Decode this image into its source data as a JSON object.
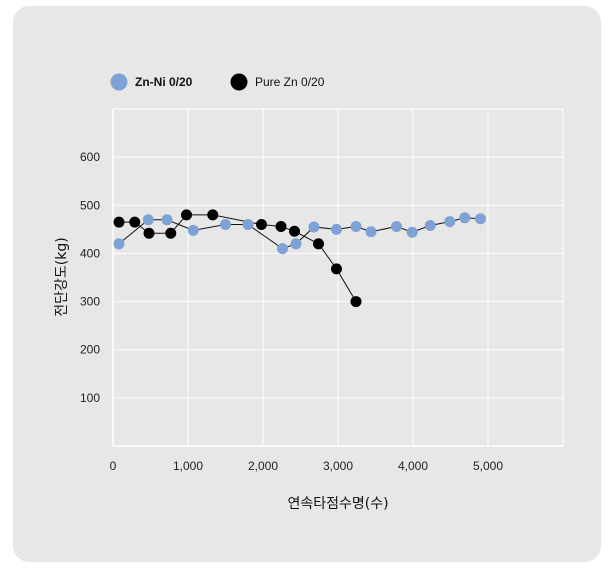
{
  "chart_data": {
    "type": "scatter",
    "title": "",
    "xlabel": "연속타점수명(수)",
    "ylabel": "전단강도(kg)",
    "xlim": [
      0,
      6000
    ],
    "ylim": [
      0,
      700
    ],
    "x_ticks": [
      0,
      1000,
      2000,
      3000,
      4000,
      5000
    ],
    "x_tick_labels": [
      "0",
      "1,000",
      "2,000",
      "3,000",
      "4,000",
      "5,000"
    ],
    "y_ticks": [
      100,
      200,
      300,
      400,
      500,
      600
    ],
    "y_tick_labels": [
      "100",
      "200",
      "300",
      "400",
      "500",
      "600"
    ],
    "grid": true,
    "legend_position": "top-left",
    "series": [
      {
        "name": "Zn-Ni 0/20",
        "color": "#7ea1d6",
        "x": [
          80,
          470,
          720,
          1070,
          1500,
          1800,
          2260,
          2440,
          2680,
          2980,
          3240,
          3440,
          3780,
          3990,
          4230,
          4490,
          4690,
          4900
        ],
        "y": [
          420,
          470,
          470,
          448,
          460,
          460,
          410,
          420,
          455,
          450,
          456,
          445,
          456,
          444,
          458,
          466,
          474,
          472
        ]
      },
      {
        "name": "Pure Zn 0/20",
        "color": "#000000",
        "x": [
          80,
          290,
          480,
          770,
          980,
          1330,
          1980,
          2240,
          2420,
          2740,
          2980,
          3240
        ],
        "y": [
          465,
          465,
          442,
          442,
          480,
          480,
          460,
          456,
          446,
          420,
          368,
          300
        ]
      }
    ]
  }
}
